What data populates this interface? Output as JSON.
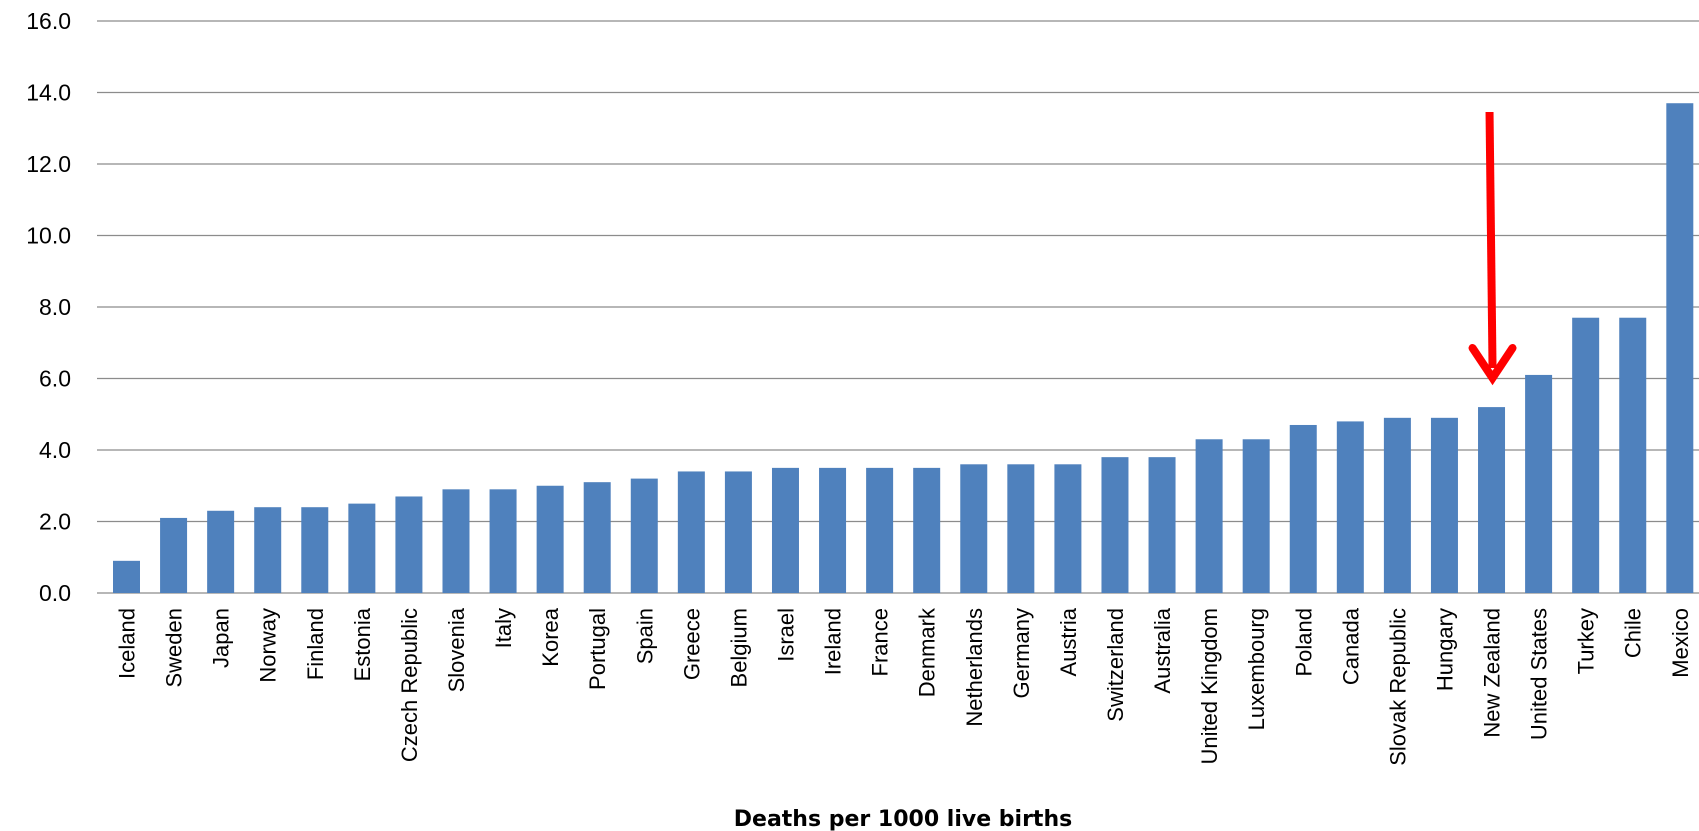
{
  "chart_data": {
    "type": "bar",
    "title": "",
    "xlabel": "Deaths per 1000 live births",
    "ylabel": "",
    "ylim": [
      0,
      16
    ],
    "yticks": [
      "0.0",
      "2.0",
      "4.0",
      "6.0",
      "8.0",
      "10.0",
      "12.0",
      "14.0",
      "16.0"
    ],
    "grid": true,
    "bar_color": "#4f81bd",
    "categories": [
      "Iceland",
      "Sweden",
      "Japan",
      "Norway",
      "Finland",
      "Estonia",
      "Czech Republic",
      "Slovenia",
      "Italy",
      "Korea",
      "Portugal",
      "Spain",
      "Greece",
      "Belgium",
      "Israel",
      "Ireland",
      "France",
      "Denmark",
      "Netherlands",
      "Germany",
      "Austria",
      "Switzerland",
      "Australia",
      "United Kingdom",
      "Luxembourg",
      "Poland",
      "Canada",
      "Slovak Republic",
      "Hungary",
      "New Zealand",
      "United States",
      "Turkey",
      "Chile",
      "Mexico"
    ],
    "values": [
      0.9,
      2.1,
      2.3,
      2.4,
      2.4,
      2.5,
      2.7,
      2.9,
      2.9,
      3.0,
      3.1,
      3.2,
      3.4,
      3.4,
      3.5,
      3.5,
      3.5,
      3.5,
      3.6,
      3.6,
      3.6,
      3.8,
      3.8,
      4.3,
      4.3,
      4.7,
      4.8,
      4.9,
      4.9,
      5.2,
      6.1,
      7.7,
      7.7,
      13.7
    ],
    "annotation": {
      "type": "arrow",
      "target_category": "New Zealand",
      "color": "#ff0000"
    }
  }
}
